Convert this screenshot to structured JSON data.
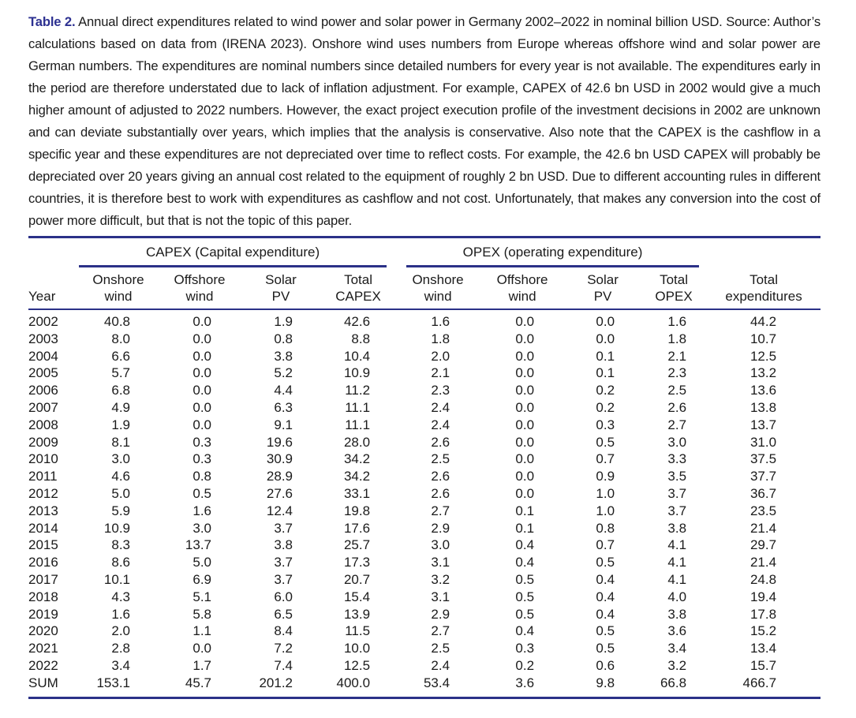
{
  "caption": {
    "label": "Table 2.",
    "text": "Annual direct expenditures related to wind power and solar power in Germany 2002–2022 in nominal billion USD. Source: Author’s calculations based on data from (IRENA 2023). Onshore wind uses numbers from Europe whereas offshore wind and solar power are German numbers. The expenditures are nominal numbers since detailed numbers for every year is not available. The expenditures early in the period are therefore understated due to lack of inflation adjustment. For example, CAPEX of 42.6 bn USD in 2002 would give a much higher amount of adjusted to 2022 numbers. However, the exact project execution profile of the investment decisions in 2002 are unknown and can deviate substantially over years, which implies that the analysis is conservative. Also note that the CAPEX is the cashflow in a specific year and these expenditures are not depreciated over time to reflect costs. For example, the 42.6 bn USD CAPEX will probably be depreciated over 20 years giving an annual cost related to the equipment of roughly 2 bn USD. Due to different accounting rules in different countries, it is therefore best to work with expenditures as cashflow and not cost. Unfortunately, that makes any conversion into the cost of power more difficult, but that is not the topic of this paper."
  },
  "accent_color": "#2b3188",
  "table": {
    "groups": [
      {
        "label": "CAPEX (Capital expenditure)",
        "span": 4
      },
      {
        "label": "OPEX (operating expenditure)",
        "span": 4
      }
    ],
    "columns": [
      "Year",
      "Onshore\nwind",
      "Offshore\nwind",
      "Solar\nPV",
      "Total\nCAPEX",
      "Onshore\nwind",
      "Offshore\nwind",
      "Solar\nPV",
      "Total\nOPEX",
      "Total\nexpenditures"
    ],
    "rows": [
      {
        "year": "2002",
        "values": [
          "40.8",
          "0.0",
          "1.9",
          "42.6",
          "1.6",
          "0.0",
          "0.0",
          "1.6",
          "44.2"
        ]
      },
      {
        "year": "2003",
        "values": [
          "8.0",
          "0.0",
          "0.8",
          "8.8",
          "1.8",
          "0.0",
          "0.0",
          "1.8",
          "10.7"
        ]
      },
      {
        "year": "2004",
        "values": [
          "6.6",
          "0.0",
          "3.8",
          "10.4",
          "2.0",
          "0.0",
          "0.1",
          "2.1",
          "12.5"
        ]
      },
      {
        "year": "2005",
        "values": [
          "5.7",
          "0.0",
          "5.2",
          "10.9",
          "2.1",
          "0.0",
          "0.1",
          "2.3",
          "13.2"
        ]
      },
      {
        "year": "2006",
        "values": [
          "6.8",
          "0.0",
          "4.4",
          "11.2",
          "2.3",
          "0.0",
          "0.2",
          "2.5",
          "13.6"
        ]
      },
      {
        "year": "2007",
        "values": [
          "4.9",
          "0.0",
          "6.3",
          "11.1",
          "2.4",
          "0.0",
          "0.2",
          "2.6",
          "13.8"
        ]
      },
      {
        "year": "2008",
        "values": [
          "1.9",
          "0.0",
          "9.1",
          "11.1",
          "2.4",
          "0.0",
          "0.3",
          "2.7",
          "13.7"
        ]
      },
      {
        "year": "2009",
        "values": [
          "8.1",
          "0.3",
          "19.6",
          "28.0",
          "2.6",
          "0.0",
          "0.5",
          "3.0",
          "31.0"
        ]
      },
      {
        "year": "2010",
        "values": [
          "3.0",
          "0.3",
          "30.9",
          "34.2",
          "2.5",
          "0.0",
          "0.7",
          "3.3",
          "37.5"
        ]
      },
      {
        "year": "2011",
        "values": [
          "4.6",
          "0.8",
          "28.9",
          "34.2",
          "2.6",
          "0.0",
          "0.9",
          "3.5",
          "37.7"
        ]
      },
      {
        "year": "2012",
        "values": [
          "5.0",
          "0.5",
          "27.6",
          "33.1",
          "2.6",
          "0.0",
          "1.0",
          "3.7",
          "36.7"
        ]
      },
      {
        "year": "2013",
        "values": [
          "5.9",
          "1.6",
          "12.4",
          "19.8",
          "2.7",
          "0.1",
          "1.0",
          "3.7",
          "23.5"
        ]
      },
      {
        "year": "2014",
        "values": [
          "10.9",
          "3.0",
          "3.7",
          "17.6",
          "2.9",
          "0.1",
          "0.8",
          "3.8",
          "21.4"
        ]
      },
      {
        "year": "2015",
        "values": [
          "8.3",
          "13.7",
          "3.8",
          "25.7",
          "3.0",
          "0.4",
          "0.7",
          "4.1",
          "29.7"
        ]
      },
      {
        "year": "2016",
        "values": [
          "8.6",
          "5.0",
          "3.7",
          "17.3",
          "3.1",
          "0.4",
          "0.5",
          "4.1",
          "21.4"
        ]
      },
      {
        "year": "2017",
        "values": [
          "10.1",
          "6.9",
          "3.7",
          "20.7",
          "3.2",
          "0.5",
          "0.4",
          "4.1",
          "24.8"
        ]
      },
      {
        "year": "2018",
        "values": [
          "4.3",
          "5.1",
          "6.0",
          "15.4",
          "3.1",
          "0.5",
          "0.4",
          "4.0",
          "19.4"
        ]
      },
      {
        "year": "2019",
        "values": [
          "1.6",
          "5.8",
          "6.5",
          "13.9",
          "2.9",
          "0.5",
          "0.4",
          "3.8",
          "17.8"
        ]
      },
      {
        "year": "2020",
        "values": [
          "2.0",
          "1.1",
          "8.4",
          "11.5",
          "2.7",
          "0.4",
          "0.5",
          "3.6",
          "15.2"
        ]
      },
      {
        "year": "2021",
        "values": [
          "2.8",
          "0.0",
          "7.2",
          "10.0",
          "2.5",
          "0.3",
          "0.5",
          "3.4",
          "13.4"
        ]
      },
      {
        "year": "2022",
        "values": [
          "3.4",
          "1.7",
          "7.4",
          "12.5",
          "2.4",
          "0.2",
          "0.6",
          "3.2",
          "15.7"
        ]
      },
      {
        "year": "SUM",
        "values": [
          "153.1",
          "45.7",
          "201.2",
          "400.0",
          "53.4",
          "3.6",
          "9.8",
          "66.8",
          "466.7"
        ]
      }
    ]
  }
}
